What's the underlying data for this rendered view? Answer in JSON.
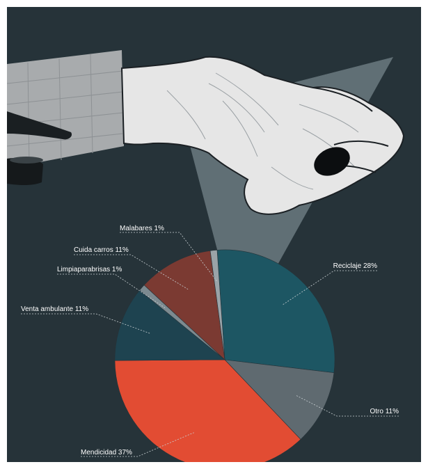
{
  "chart_data": {
    "type": "pie",
    "title": "",
    "slices": [
      {
        "label": "Reciclaje 28%",
        "value": 28,
        "color": "#1d5663"
      },
      {
        "label": "Otro 11%",
        "value": 11,
        "color": "#5f6a70"
      },
      {
        "label": "Mendicidad 37%",
        "value": 37,
        "color": "#e24c33"
      },
      {
        "label": "Venta ambulante 11%",
        "value": 11,
        "color": "#1e4350"
      },
      {
        "label": "Limpiaparabrisas 1%",
        "value": 1,
        "color": "#7c8a90"
      },
      {
        "label": "Cuida carros 11%",
        "value": 11,
        "color": "#7b3a32"
      },
      {
        "label": "Malabares 1%",
        "value": 1,
        "color": "#9aa3a8"
      }
    ]
  },
  "colors": {
    "background": "#263339",
    "beam": "#6b7a80"
  },
  "illustration": {
    "subject": "hand-holding-coin-icon",
    "pavement": "pavement-photo-icon"
  }
}
